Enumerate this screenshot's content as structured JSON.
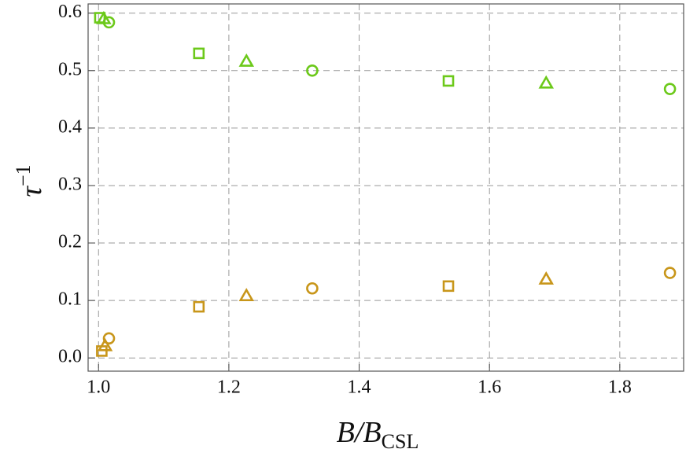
{
  "chart_data": {
    "type": "scatter",
    "x_label": {
      "base": "B/B",
      "sub": "CSL"
    },
    "y_label": {
      "base": "τ",
      "sup": "−1"
    },
    "xlim": [
      0.984,
      1.898
    ],
    "ylim": [
      -0.023,
      0.616
    ],
    "xticks": [
      {
        "value": 1,
        "label": "1.0"
      },
      1.2,
      1.4,
      1.6,
      1.8
    ],
    "yticks": [
      {
        "value": 0,
        "label": "0.0"
      },
      0.1,
      0.2,
      0.3,
      0.4,
      0.5,
      0.6
    ],
    "grid": true,
    "series": [
      {
        "marker": "square",
        "color": "#6cc91a",
        "x": [
          1.002,
          1.154,
          1.537
        ],
        "values": [
          0.592,
          0.53,
          0.482
        ]
      },
      {
        "marker": "triangle",
        "color": "#6cc91a",
        "x": [
          1.008,
          1.227,
          1.687
        ],
        "values": [
          0.59,
          0.516,
          0.478
        ]
      },
      {
        "marker": "circle",
        "color": "#6cc91a",
        "x": [
          1.016,
          1.328,
          1.877
        ],
        "values": [
          0.584,
          0.5,
          0.468
        ]
      },
      {
        "marker": "square",
        "color": "#c8961a",
        "x": [
          1.005,
          1.154,
          1.537
        ],
        "values": [
          0.012,
          0.089,
          0.125
        ]
      },
      {
        "marker": "triangle",
        "color": "#c8961a",
        "x": [
          1.01,
          1.227,
          1.687
        ],
        "values": [
          0.021,
          0.108,
          0.137
        ]
      },
      {
        "marker": "circle",
        "color": "#c8961a",
        "x": [
          1.016,
          1.328,
          1.877
        ],
        "values": [
          0.034,
          0.121,
          0.148
        ]
      }
    ]
  }
}
